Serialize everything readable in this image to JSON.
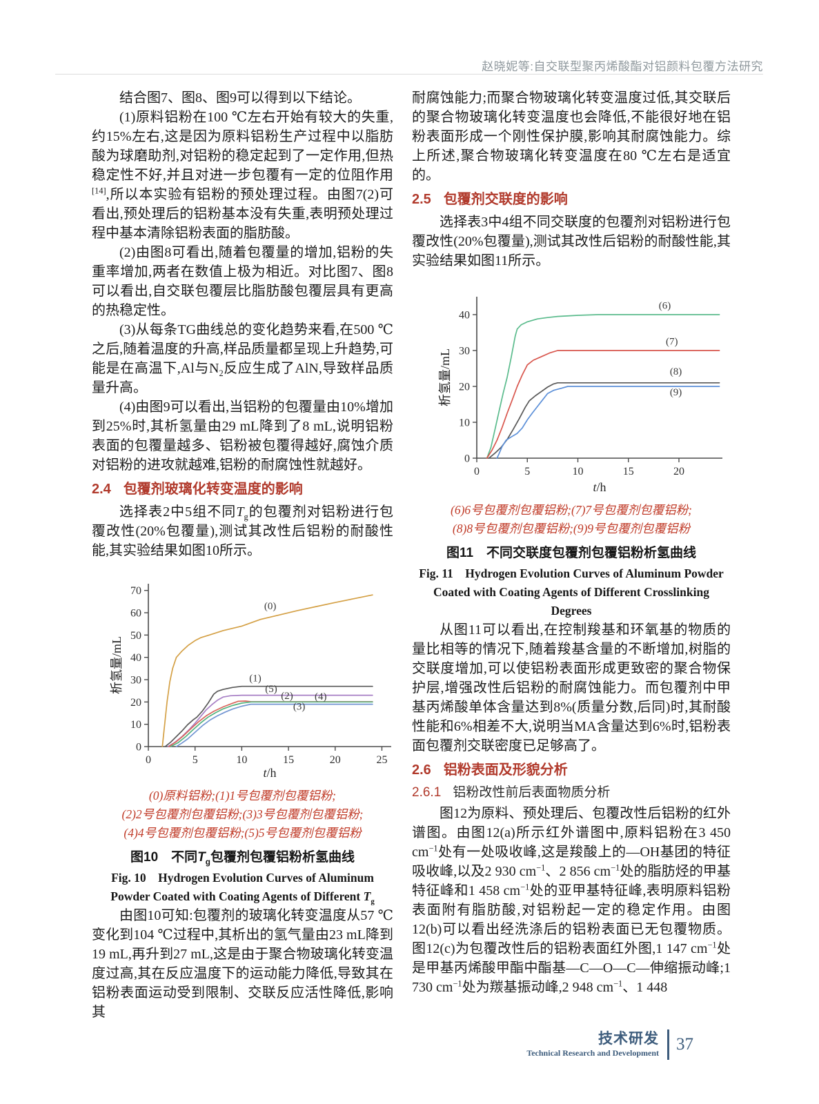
{
  "colors": {
    "heading_red": "#b13a2c",
    "legend_red": "#c03b28",
    "footer_blue": "#3d5c7c",
    "header_gray": "#8f989d"
  },
  "header": {
    "running_title": "赵晓妮等:自交联型聚丙烯酸酯对铝颜料包覆方法研究"
  },
  "left": {
    "paragraphs": [
      "结合图7、图8、图9可以得到以下结论。",
      "(1)原料铝粉在100 ℃左右开始有较大的失重,约15%左右,这是因为原料铝粉生产过程中以脂肪酸为球磨助剂,对铝粉的稳定起到了一定作用,但热稳定性不好,并且对进一步包覆有一定的位阻作用^{[14]},所以本实验有铝粉的预处理过程。由图7(2)可看出,预处理后的铝粉基本没有失重,表明预处理过程中基本清除铝粉表面的脂肪酸。",
      "(2)由图8可看出,随着包覆量的增加,铝粉的失重率增加,两者在数值上极为相近。对比图7、图8可以看出,自交联包覆层比脂肪酸包覆层具有更高的热稳定性。",
      "(3)从每条TG曲线总的变化趋势来看,在500 ℃之后,随着温度的升高,样品质量都呈现上升趋势,可能是在高温下,Al与N_{2}反应生成了AlN,导致样品质量升高。",
      "(4)由图9可以看出,当铝粉的包覆量由10%增加到25%时,其析氢量由29 mL降到了8 mL,说明铝粉表面的包覆量越多、铝粉被包覆得越好,腐蚀介质对铝粉的进攻就越难,铝粉的耐腐蚀性就越好。"
    ],
    "section24": {
      "number": "2.4",
      "title": "包覆剂玻璃化转变温度的影响"
    },
    "para_after24": "选择表2中5组不同*T*_{g}的包覆剂对铝粉进行包覆改性(20%包覆量),测试其改性后铝粉的耐酸性能,其实验结果如图10所示。",
    "fig10": {
      "legend": [
        "(0)原料铝粉;(1)1号包覆剂包覆铝粉;",
        "(2)2号包覆剂包覆铝粉;(3)3号包覆剂包覆铝粉;",
        "(4)4号包覆剂包覆铝粉;(5)5号包覆剂包覆铝粉"
      ],
      "caption_zh": "图10　不同*T*_{g}包覆剂包覆铝粉析氢曲线",
      "caption_en": "Fig. 10　Hydrogen Evolution Curves of Aluminum Powder Coated with Coating Agents of Different *T*_{g}"
    },
    "para_bottom": "由图10可知:包覆剂的玻璃化转变温度从57 ℃变化到104 ℃过程中,其析出的氢气量由23 mL降到19 mL,再升到27 mL,这是由于聚合物玻璃化转变温度过高,其在反应温度下的运动能力降低,导致其在铝粉表面运动受到限制、交联反应活性降低,影响其"
  },
  "right": {
    "para_top": "耐腐蚀能力;而聚合物玻璃化转变温度过低,其交联后的聚合物玻璃化转变温度也会降低,不能很好地在铝粉表面形成一个刚性保护膜,影响其耐腐蚀能力。综上所述,聚合物玻璃化转变温度在80 ℃左右是适宜的。",
    "section25": {
      "number": "2.5",
      "title": "包覆剂交联度的影响"
    },
    "para_after25": "选择表3中4组不同交联度的包覆剂对铝粉进行包覆改性(20%包覆量),测试其改性后铝粉的耐酸性能,其实验结果如图11所示。",
    "fig11": {
      "legend": [
        "(6)6号包覆剂包覆铝粉;(7)7号包覆剂包覆铝粉;",
        "(8)8号包覆剂包覆铝粉;(9)9号包覆剂包覆铝粉"
      ],
      "caption_zh": "图11　不同交联度包覆剂包覆铝粉析氢曲线",
      "caption_en": "Fig. 11　Hydrogen Evolution Curves of Aluminum Powder Coated with Coating Agents of Different Crosslinking Degrees"
    },
    "para_fig11_discuss": "从图11可以看出,在控制羧基和环氧基的物质的量比相等的情况下,随着羧基含量的不断增加,树脂的交联度增加,可以使铝粉表面形成更致密的聚合物保护层,增强改性后铝粉的耐腐蚀能力。而包覆剂中甲基丙烯酸单体含量达到8%(质量分数,后同)时,其耐酸性能和6%相差不大,说明当MA含量达到6%时,铝粉表面包覆剂交联密度已足够高了。",
    "section26": {
      "number": "2.6",
      "title": "铝粉表面及形貌分析"
    },
    "section261": {
      "number": "2.6.1",
      "title": "铝粉改性前后表面物质分析"
    },
    "para_ir": "图12为原料、预处理后、包覆改性后铝粉的红外谱图。由图12(a)所示红外谱图中,原料铝粉在3 450 cm^{−1}处有一处吸收峰,这是羧酸上的—OH基团的特征吸收峰,以及2 930 cm^{−1}、2 856 cm^{−1}处的脂肪烃的甲基特征峰和1 458 cm^{−1}处的亚甲基特征峰,表明原料铝粉表面附有脂肪酸,对铝粉起一定的稳定作用。由图12(b)可以看出经洗涤后的铝粉表面已无包覆物质。图12(c)为包覆改性后的铝粉表面红外图,1 147 cm^{−1}处是甲基丙烯酸甲酯中酯基—C—O—C—伸缩振动峰;1 730 cm^{−1}处为羰基振动峰,2 948 cm^{−1}、1 448"
  },
  "footer": {
    "label_zh": "技术研发",
    "label_en": "Technical Research and Development",
    "page": "37"
  },
  "chart_data": [
    {
      "id": "fig10",
      "type": "line",
      "title": "不同Tg包覆剂包覆铝粉析氢曲线",
      "xlabel": "*t*/h",
      "ylabel": "析氢量/mL",
      "xlim": [
        0,
        26
      ],
      "ylim": [
        0,
        73
      ],
      "xticks": [
        0,
        5,
        10,
        15,
        20,
        25
      ],
      "yticks": [
        0,
        10,
        20,
        30,
        40,
        50,
        60,
        70
      ],
      "grid": false,
      "legend_position": "curve-labels",
      "series": [
        {
          "name": "(0)",
          "color": "#d4a045",
          "label_x": 12.4,
          "label_y": 61.5,
          "points": [
            [
              1.5,
              0
            ],
            [
              1.7,
              8
            ],
            [
              2,
              20
            ],
            [
              2.3,
              29
            ],
            [
              2.6,
              35
            ],
            [
              3,
              40
            ],
            [
              3.6,
              42.8
            ],
            [
              4.3,
              45.5
            ],
            [
              5,
              47.5
            ],
            [
              5.6,
              48.8
            ],
            [
              6.5,
              50
            ],
            [
              8,
              52
            ],
            [
              9,
              53
            ],
            [
              10,
              54
            ],
            [
              11,
              55.5
            ],
            [
              12,
              57
            ],
            [
              14,
              59
            ],
            [
              16,
              61
            ],
            [
              18,
              62.8
            ],
            [
              20,
              64.6
            ],
            [
              22,
              66.3
            ],
            [
              24,
              68
            ]
          ]
        },
        {
          "name": "(1)",
          "color": "#595959",
          "label_x": 10.8,
          "label_y": 29.2,
          "points": [
            [
              1.8,
              0
            ],
            [
              2.4,
              2
            ],
            [
              3,
              4.5
            ],
            [
              3.6,
              7
            ],
            [
              4.2,
              9.8
            ],
            [
              4.8,
              12
            ],
            [
              5.2,
              13.2
            ],
            [
              5.8,
              16
            ],
            [
              6.4,
              19.5
            ],
            [
              7,
              23.5
            ],
            [
              7.4,
              24.8
            ],
            [
              8,
              25.6
            ],
            [
              9,
              26.5
            ],
            [
              10,
              27
            ],
            [
              24,
              27
            ]
          ]
        },
        {
          "name": "(5)",
          "color": "#a77fc5",
          "label_x": 12.5,
          "label_y": 24.4,
          "points": [
            [
              2.1,
              0
            ],
            [
              2.8,
              1.8
            ],
            [
              3.6,
              4.5
            ],
            [
              4.4,
              7.8
            ],
            [
              5,
              10.5
            ],
            [
              5.6,
              13.5
            ],
            [
              6.2,
              16.5
            ],
            [
              6.8,
              18.8
            ],
            [
              7.4,
              20.8
            ],
            [
              8,
              22.2
            ],
            [
              8.8,
              22.8
            ],
            [
              10,
              23
            ],
            [
              24,
              23
            ]
          ]
        },
        {
          "name": "(2)",
          "color": "#d9655c",
          "label_x": 14.2,
          "label_y": 21.4,
          "points": [
            [
              2.2,
              0
            ],
            [
              3,
              2.2
            ],
            [
              3.8,
              5
            ],
            [
              4.6,
              8.2
            ],
            [
              5.4,
              11.2
            ],
            [
              6.2,
              13.8
            ],
            [
              7,
              15.8
            ],
            [
              8,
              17.8
            ],
            [
              9,
              19.4
            ],
            [
              9.6,
              20.3
            ],
            [
              10.4,
              20.4
            ],
            [
              11,
              20.1
            ],
            [
              24,
              20.1
            ]
          ]
        },
        {
          "name": "(4)",
          "color": "#54b27e",
          "label_x": 17.8,
          "label_y": 21,
          "points": [
            [
              2.4,
              0
            ],
            [
              3.2,
              1.8
            ],
            [
              4,
              4.5
            ],
            [
              4.8,
              7.6
            ],
            [
              5.6,
              10.6
            ],
            [
              6.4,
              13.2
            ],
            [
              7.2,
              15.2
            ],
            [
              8,
              16.9
            ],
            [
              9,
              18.4
            ],
            [
              10,
              19.5
            ],
            [
              11,
              20
            ],
            [
              24,
              20
            ]
          ]
        },
        {
          "name": "(3)",
          "color": "#7295d2",
          "label_x": 15.5,
          "label_y": 16.6,
          "points": [
            [
              3,
              0
            ],
            [
              3.6,
              1.6
            ],
            [
              4.2,
              3.4
            ],
            [
              5,
              6.4
            ],
            [
              5.8,
              9.4
            ],
            [
              6.6,
              11.9
            ],
            [
              7.4,
              13.8
            ],
            [
              8.2,
              15.4
            ],
            [
              9,
              16.8
            ],
            [
              10,
              18.1
            ],
            [
              11,
              19
            ],
            [
              24,
              19
            ]
          ]
        }
      ]
    },
    {
      "id": "fig11",
      "type": "line",
      "title": "不同交联度包覆剂包覆铝粉析氢曲线",
      "xlabel": "*t*/h",
      "ylabel": "析氢量/mL",
      "xlim": [
        0,
        24.3
      ],
      "ylim": [
        0,
        45
      ],
      "xticks": [
        0,
        5,
        10,
        15,
        20
      ],
      "yticks": [
        0,
        10,
        20,
        30,
        40
      ],
      "grid": false,
      "legend_position": "curve-labels",
      "series": [
        {
          "name": "(6)",
          "color": "#5abb8c",
          "label_x": 18,
          "label_y": 41.6,
          "points": [
            [
              1,
              0
            ],
            [
              1.4,
              3
            ],
            [
              1.8,
              8
            ],
            [
              2.2,
              13
            ],
            [
              2.6,
              18
            ],
            [
              3,
              22.5
            ],
            [
              3.4,
              28
            ],
            [
              3.8,
              34
            ],
            [
              4,
              36
            ],
            [
              4.4,
              37.2
            ],
            [
              5,
              38
            ],
            [
              6,
              38.8
            ],
            [
              7,
              39.2
            ],
            [
              8,
              39.5
            ],
            [
              10,
              39.8
            ],
            [
              12,
              40
            ],
            [
              24,
              40
            ]
          ]
        },
        {
          "name": "(7)",
          "color": "#d8554c",
          "label_x": 18.7,
          "label_y": 31.6,
          "points": [
            [
              1,
              0
            ],
            [
              1.5,
              2.2
            ],
            [
              2,
              5
            ],
            [
              2.5,
              8.5
            ],
            [
              3,
              12.5
            ],
            [
              3.5,
              16.2
            ],
            [
              4,
              20
            ],
            [
              4.5,
              23.2
            ],
            [
              5,
              26
            ],
            [
              5.6,
              27.3
            ],
            [
              6.4,
              28.3
            ],
            [
              7.2,
              29.3
            ],
            [
              8,
              30
            ],
            [
              24,
              30
            ]
          ]
        },
        {
          "name": "(8)",
          "color": "#585858",
          "label_x": 19.1,
          "label_y": 23.3,
          "points": [
            [
              1.2,
              0
            ],
            [
              1.8,
              1.4
            ],
            [
              2.4,
              3
            ],
            [
              3,
              5.2
            ],
            [
              3.6,
              8
            ],
            [
              4.2,
              11
            ],
            [
              4.8,
              14.2
            ],
            [
              5.2,
              16
            ],
            [
              5.8,
              17.4
            ],
            [
              6.4,
              18.6
            ],
            [
              7,
              19.8
            ],
            [
              7.6,
              20.7
            ],
            [
              8,
              21
            ],
            [
              24,
              21
            ]
          ]
        },
        {
          "name": "(9)",
          "color": "#5b8fd8",
          "label_x": 19.1,
          "label_y": 17.5,
          "points": [
            [
              2,
              0
            ],
            [
              2.2,
              1.2
            ],
            [
              2.5,
              3.2
            ],
            [
              2.9,
              5
            ],
            [
              3.4,
              5.9
            ],
            [
              4,
              6.9
            ],
            [
              4.5,
              8.4
            ],
            [
              5,
              10.7
            ],
            [
              5.5,
              12.6
            ],
            [
              6,
              14.4
            ],
            [
              6.5,
              16.2
            ],
            [
              7,
              18
            ],
            [
              7.6,
              18.9
            ],
            [
              8.4,
              19.5
            ],
            [
              9,
              20
            ],
            [
              24,
              20
            ]
          ]
        }
      ]
    }
  ]
}
